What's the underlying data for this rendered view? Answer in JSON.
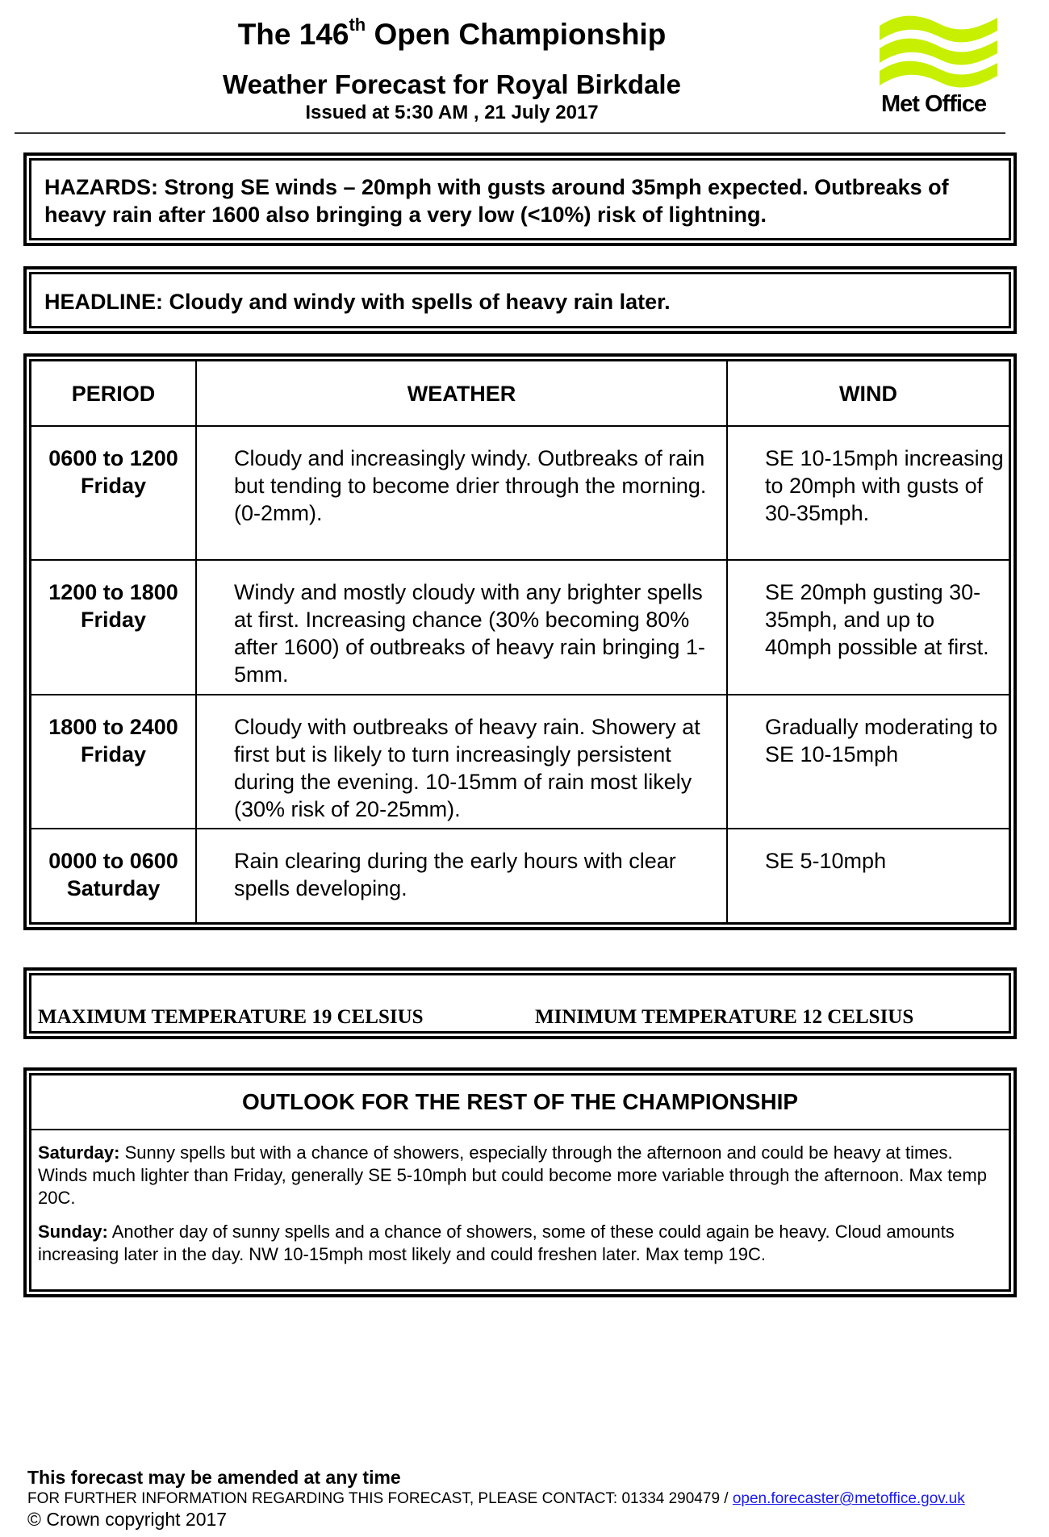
{
  "header": {
    "title_prefix": "The 146",
    "title_sup": "th",
    "title_suffix": " Open Championship",
    "subtitle": "Weather Forecast for Royal Birkdale",
    "issued": "Issued at 5:30 AM , 21 July 2017",
    "logo_text": "Met Office",
    "logo_color": "#c6f000"
  },
  "hazards": "HAZARDS: Strong SE winds – 20mph with gusts around 35mph expected. Outbreaks of heavy rain after 1600 also bringing a very low (<10%) risk of lightning.",
  "headline": "HEADLINE: Cloudy and windy with spells of heavy rain later.",
  "forecast_table": {
    "columns": [
      "PERIOD",
      "WEATHER",
      "WIND"
    ],
    "rows": [
      {
        "period_time": "0600 to 1200",
        "period_day": "Friday",
        "weather": "Cloudy and increasingly windy. Outbreaks of rain but tending to become drier through the morning. (0-2mm).",
        "wind": "SE 10-15mph increasing to 20mph with gusts of 30-35mph."
      },
      {
        "period_time": "1200 to 1800",
        "period_day": "Friday",
        "weather": "Windy and mostly cloudy with any brighter spells at first. Increasing chance (30% becoming 80% after 1600) of outbreaks of heavy rain bringing 1-5mm.",
        "wind": "SE 20mph gusting 30-35mph, and up to 40mph possible at first."
      },
      {
        "period_time": "1800 to 2400",
        "period_day": "Friday",
        "weather": "Cloudy with outbreaks of heavy rain. Showery at first but is likely to turn increasingly persistent during the evening. 10-15mm of rain most likely (30% risk of 20-25mm).",
        "wind": "Gradually moderating to SE 10-15mph"
      },
      {
        "period_time": "0000 to 0600",
        "period_day": "Saturday",
        "weather": "Rain clearing during the early hours with clear spells developing.",
        "wind": "SE 5-10mph"
      }
    ]
  },
  "temperatures": {
    "max": "MAXIMUM TEMPERATURE 19 CELSIUS",
    "min": "MINIMUM TEMPERATURE 12 CELSIUS"
  },
  "outlook": {
    "heading": "OUTLOOK FOR THE REST OF THE CHAMPIONSHIP",
    "days": [
      {
        "label": "Saturday:",
        "text": " Sunny spells but with a chance of showers, especially through the afternoon and could be heavy at times. Winds much lighter than Friday, generally SE 5-10mph but could become more variable through the afternoon. Max temp 20C."
      },
      {
        "label": "Sunday:",
        "text": " Another day of sunny spells and a chance of showers, some of these could again be heavy. Cloud amounts increasing later in the day. NW 10-15mph most likely and could freshen later. Max temp 19C."
      }
    ]
  },
  "footer": {
    "amend_notice": "This forecast may be amended at any time",
    "contact_text": "FOR FURTHER INFORMATION REGARDING THIS FORECAST, PLEASE CONTACT: 01334 290479 / ",
    "contact_email": "open.forecaster@metoffice.gov.uk",
    "copyright": "© Crown copyright  2017"
  }
}
